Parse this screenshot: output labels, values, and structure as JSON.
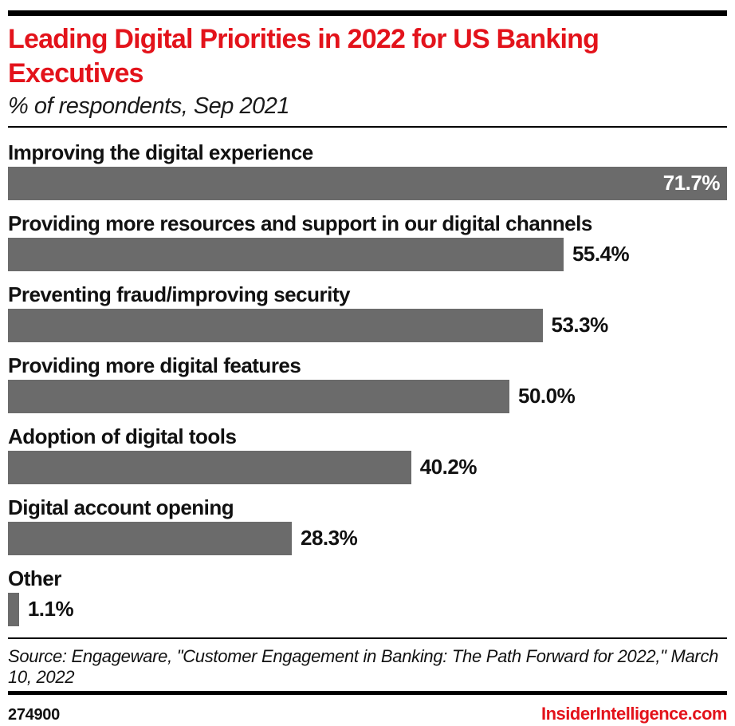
{
  "header": {
    "title": "Leading Digital Priorities in 2022 for US Banking Executives",
    "subtitle": "% of respondents, Sep 2021"
  },
  "chart_data": {
    "type": "bar",
    "orientation": "horizontal",
    "title": "Leading Digital Priorities in 2022 for US Banking Executives",
    "subtitle": "% of respondents, Sep 2021",
    "unit": "% of respondents",
    "axis_max_for_scale": 71.7,
    "grid": false,
    "legend": false,
    "categories": [
      "Improving the digital experience",
      "Providing more resources and support in our digital channels",
      "Preventing fraud/improving security",
      "Providing more digital features",
      "Adoption of digital tools",
      "Digital account opening",
      "Other"
    ],
    "values": [
      71.7,
      55.4,
      53.3,
      50.0,
      40.2,
      28.3,
      1.1
    ],
    "bars": [
      {
        "label": "Improving the digital experience",
        "value": 71.7,
        "display": "71.7%",
        "value_position": "inside"
      },
      {
        "label": "Providing more resources and support in our digital channels",
        "value": 55.4,
        "display": "55.4%",
        "value_position": "outside"
      },
      {
        "label": "Preventing fraud/improving security",
        "value": 53.3,
        "display": "53.3%",
        "value_position": "outside"
      },
      {
        "label": "Providing more digital features",
        "value": 50.0,
        "display": "50.0%",
        "value_position": "outside"
      },
      {
        "label": "Adoption of digital tools",
        "value": 40.2,
        "display": "40.2%",
        "value_position": "outside"
      },
      {
        "label": "Digital account opening",
        "value": 28.3,
        "display": "28.3%",
        "value_position": "outside"
      },
      {
        "label": "Other",
        "value": 1.1,
        "display": "1.1%",
        "value_position": "outside"
      }
    ],
    "bar_color": "#6b6b6b"
  },
  "footer": {
    "source": "Source: Engageware, \"Customer Engagement in Banking: The Path Forward for 2022,\" March 10, 2022",
    "chart_id": "274900",
    "brand": "InsiderIntelligence.com"
  },
  "colors": {
    "accent_red": "#e3131b",
    "bar_gray": "#6b6b6b",
    "text": "#111111"
  }
}
